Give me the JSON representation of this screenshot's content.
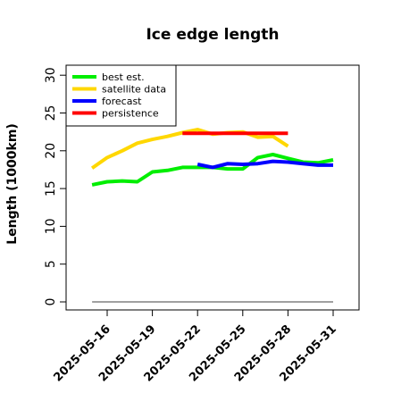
{
  "chart_data": {
    "type": "line",
    "title": "Ice edge length",
    "xlabel": "",
    "ylabel": "Length (1000km)",
    "ylim": [
      0,
      32
    ],
    "yticks": [
      0,
      5,
      10,
      15,
      20,
      25,
      30
    ],
    "xlim": [
      "2025-05-13",
      "2025-06-01"
    ],
    "xticks": [
      "2025-05-16",
      "2025-05-19",
      "2025-05-22",
      "2025-05-25",
      "2025-05-28",
      "2025-05-31"
    ],
    "highlighted_xtick": "2025-05-22",
    "highlight_color": "#228b22",
    "legend_position": "top-left",
    "baseline": {
      "y": 0,
      "color": "#808080",
      "x": [
        "2025-05-15",
        "2025-05-31"
      ]
    },
    "series": [
      {
        "name": "best est.",
        "color": "#00ee00",
        "x": [
          "2025-05-15",
          "2025-05-16",
          "2025-05-17",
          "2025-05-18",
          "2025-05-19",
          "2025-05-20",
          "2025-05-21",
          "2025-05-22",
          "2025-05-23",
          "2025-05-24",
          "2025-05-25",
          "2025-05-26",
          "2025-05-27",
          "2025-05-28",
          "2025-05-29",
          "2025-05-30",
          "2025-05-31"
        ],
        "values": [
          15.5,
          15.9,
          16.0,
          15.9,
          17.2,
          17.4,
          17.8,
          17.8,
          17.8,
          17.6,
          17.6,
          19.1,
          19.5,
          19.0,
          18.5,
          18.4,
          18.8
        ]
      },
      {
        "name": "satellite data",
        "color": "#ffd700",
        "x": [
          "2025-05-15",
          "2025-05-16",
          "2025-05-17",
          "2025-05-18",
          "2025-05-19",
          "2025-05-20",
          "2025-05-21",
          "2025-05-22",
          "2025-05-23",
          "2025-05-24",
          "2025-05-25",
          "2025-05-26",
          "2025-05-27",
          "2025-05-28"
        ],
        "values": [
          17.7,
          19.1,
          20.0,
          21.0,
          21.5,
          21.9,
          22.4,
          22.8,
          22.2,
          22.4,
          22.5,
          21.8,
          21.9,
          20.6
        ]
      },
      {
        "name": "forecast",
        "color": "#0000ff",
        "x": [
          "2025-05-22",
          "2025-05-23",
          "2025-05-24",
          "2025-05-25",
          "2025-05-26",
          "2025-05-27",
          "2025-05-28",
          "2025-05-29",
          "2025-05-30",
          "2025-05-31"
        ],
        "values": [
          18.2,
          17.8,
          18.3,
          18.2,
          18.3,
          18.6,
          18.5,
          18.3,
          18.1,
          18.1
        ]
      },
      {
        "name": "persistence",
        "color": "#ff0000",
        "x": [
          "2025-05-21",
          "2025-05-28"
        ],
        "values": [
          22.3,
          22.3
        ]
      }
    ]
  }
}
